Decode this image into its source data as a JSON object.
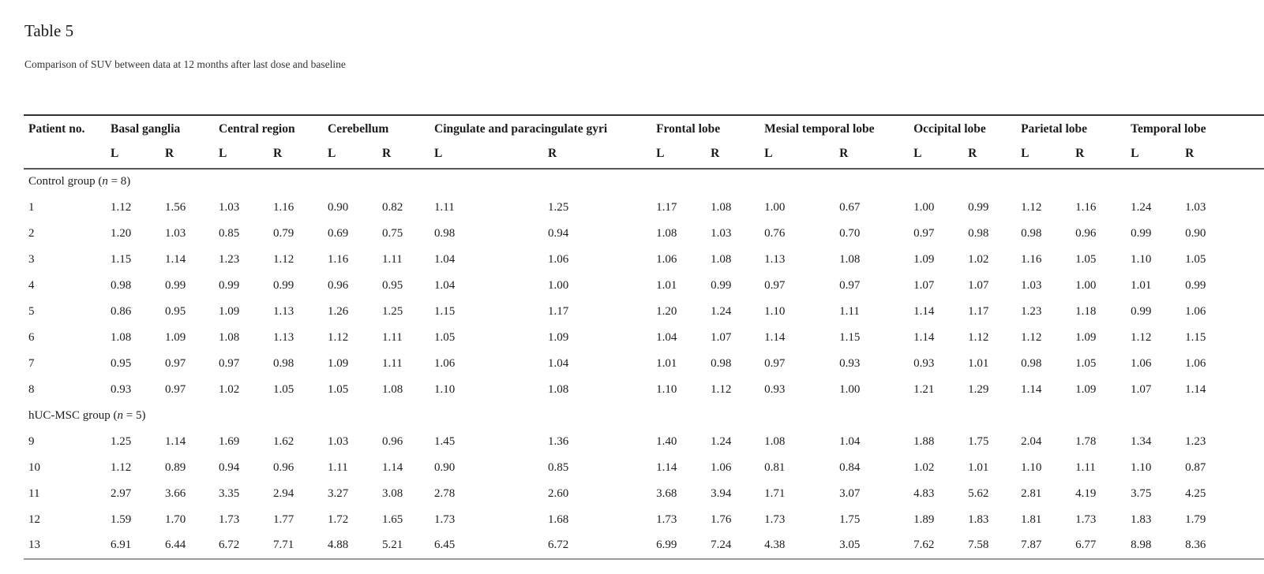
{
  "page": {
    "title": "Table 5",
    "caption": "Comparison of SUV between data at 12 months after last dose and baseline"
  },
  "colors": {
    "text": "#1c1c1c",
    "rule_top": "#303030",
    "rule_header_separator": "#575757",
    "rule_bottom": "#9b9b9b"
  },
  "table": {
    "patient_header": "Patient no.",
    "regions": [
      {
        "name": "Basal ganglia",
        "sub": [
          "L",
          "R"
        ]
      },
      {
        "name": "Central region",
        "sub": [
          "L",
          "R"
        ]
      },
      {
        "name": "Cerebellum",
        "sub": [
          "L",
          "R"
        ]
      },
      {
        "name": "Cingulate and paracingulate gyri",
        "sub": [
          "L",
          "R"
        ]
      },
      {
        "name": "Frontal lobe",
        "sub": [
          "L",
          "R"
        ]
      },
      {
        "name": "Mesial temporal lobe",
        "sub": [
          "L",
          "R"
        ]
      },
      {
        "name": "Occipital lobe",
        "sub": [
          "L",
          "R"
        ]
      },
      {
        "name": "Parietal lobe",
        "sub": [
          "L",
          "R"
        ]
      },
      {
        "name": "Temporal lobe",
        "sub": [
          "L",
          "R"
        ]
      }
    ],
    "groups": [
      {
        "label": {
          "before": "Control group (",
          "italic": "n",
          "after": " = 8)"
        },
        "rows": [
          {
            "patient": "1",
            "values": [
              "1.12",
              "1.56",
              "1.03",
              "1.16",
              "0.90",
              "0.82",
              "1.11",
              "1.25",
              "1.17",
              "1.08",
              "1.00",
              "0.67",
              "1.00",
              "0.99",
              "1.12",
              "1.16",
              "1.24",
              "1.03"
            ]
          },
          {
            "patient": "2",
            "values": [
              "1.20",
              "1.03",
              "0.85",
              "0.79",
              "0.69",
              "0.75",
              "0.98",
              "0.94",
              "1.08",
              "1.03",
              "0.76",
              "0.70",
              "0.97",
              "0.98",
              "0.98",
              "0.96",
              "0.99",
              "0.90"
            ]
          },
          {
            "patient": "3",
            "values": [
              "1.15",
              "1.14",
              "1.23",
              "1.12",
              "1.16",
              "1.11",
              "1.04",
              "1.06",
              "1.06",
              "1.08",
              "1.13",
              "1.08",
              "1.09",
              "1.02",
              "1.16",
              "1.05",
              "1.10",
              "1.05"
            ]
          },
          {
            "patient": "4",
            "values": [
              "0.98",
              "0.99",
              "0.99",
              "0.99",
              "0.96",
              "0.95",
              "1.04",
              "1.00",
              "1.01",
              "0.99",
              "0.97",
              "0.97",
              "1.07",
              "1.07",
              "1.03",
              "1.00",
              "1.01",
              "0.99"
            ]
          },
          {
            "patient": "5",
            "values": [
              "0.86",
              "0.95",
              "1.09",
              "1.13",
              "1.26",
              "1.25",
              "1.15",
              "1.17",
              "1.20",
              "1.24",
              "1.10",
              "1.11",
              "1.14",
              "1.17",
              "1.23",
              "1.18",
              "0.99",
              "1.06"
            ]
          },
          {
            "patient": "6",
            "values": [
              "1.08",
              "1.09",
              "1.08",
              "1.13",
              "1.12",
              "1.11",
              "1.05",
              "1.09",
              "1.04",
              "1.07",
              "1.14",
              "1.15",
              "1.14",
              "1.12",
              "1.12",
              "1.09",
              "1.12",
              "1.15"
            ]
          },
          {
            "patient": "7",
            "values": [
              "0.95",
              "0.97",
              "0.97",
              "0.98",
              "1.09",
              "1.11",
              "1.06",
              "1.04",
              "1.01",
              "0.98",
              "0.97",
              "0.93",
              "0.93",
              "1.01",
              "0.98",
              "1.05",
              "1.06",
              "1.06"
            ]
          },
          {
            "patient": "8",
            "values": [
              "0.93",
              "0.97",
              "1.02",
              "1.05",
              "1.05",
              "1.08",
              "1.10",
              "1.08",
              "1.10",
              "1.12",
              "0.93",
              "1.00",
              "1.21",
              "1.29",
              "1.14",
              "1.09",
              "1.07",
              "1.14"
            ]
          }
        ]
      },
      {
        "label": {
          "before": "hUC-MSC group (",
          "italic": "n",
          "after": " = 5)"
        },
        "rows": [
          {
            "patient": "9",
            "values": [
              "1.25",
              "1.14",
              "1.69",
              "1.62",
              "1.03",
              "0.96",
              "1.45",
              "1.36",
              "1.40",
              "1.24",
              "1.08",
              "1.04",
              "1.88",
              "1.75",
              "2.04",
              "1.78",
              "1.34",
              "1.23"
            ]
          },
          {
            "patient": "10",
            "values": [
              "1.12",
              "0.89",
              "0.94",
              "0.96",
              "1.11",
              "1.14",
              "0.90",
              "0.85",
              "1.14",
              "1.06",
              "0.81",
              "0.84",
              "1.02",
              "1.01",
              "1.10",
              "1.11",
              "1.10",
              "0.87"
            ]
          },
          {
            "patient": "11",
            "values": [
              "2.97",
              "3.66",
              "3.35",
              "2.94",
              "3.27",
              "3.08",
              "2.78",
              "2.60",
              "3.68",
              "3.94",
              "1.71",
              "3.07",
              "4.83",
              "5.62",
              "2.81",
              "4.19",
              "3.75",
              "4.25"
            ]
          },
          {
            "patient": "12",
            "values": [
              "1.59",
              "1.70",
              "1.73",
              "1.77",
              "1.72",
              "1.65",
              "1.73",
              "1.68",
              "1.73",
              "1.76",
              "1.73",
              "1.75",
              "1.89",
              "1.83",
              "1.81",
              "1.73",
              "1.83",
              "1.79"
            ]
          },
          {
            "patient": "13",
            "values": [
              "6.91",
              "6.44",
              "6.72",
              "7.71",
              "4.88",
              "5.21",
              "6.45",
              "6.72",
              "6.99",
              "7.24",
              "4.38",
              "3.05",
              "7.62",
              "7.58",
              "7.87",
              "6.77",
              "8.98",
              "8.36"
            ]
          }
        ]
      }
    ]
  }
}
